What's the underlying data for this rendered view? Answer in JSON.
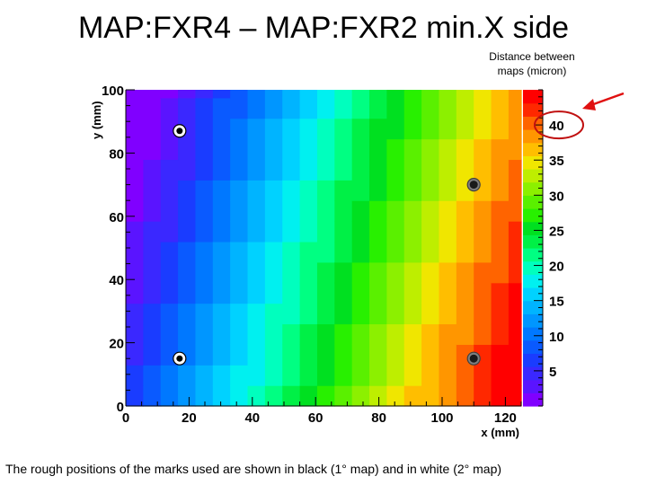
{
  "slide": {
    "title": "MAP:FXR4 – MAP:FXR2 min.X side",
    "caption": "The rough positions of the marks used are shown in black (1° map) and in white (2° map)"
  },
  "colors": {
    "palette": [
      "#8000ff",
      "#5a14ff",
      "#3a28ff",
      "#1a3cff",
      "#0a5aff",
      "#0078ff",
      "#0096ff",
      "#00b4ff",
      "#00d2ff",
      "#00f0f0",
      "#00ffbe",
      "#00ff82",
      "#00f046",
      "#00e020",
      "#28f000",
      "#5af000",
      "#8cf000",
      "#beee00",
      "#f0e600",
      "#ffbe00",
      "#ff9600",
      "#ff6400",
      "#ff2800",
      "#ff0000"
    ],
    "white_mark": "#ffffff",
    "black_mark": "#1a1a1a",
    "arrow": "#e01010",
    "highlight_ellipse": "#c01010"
  },
  "chart_data": {
    "type": "heatmap",
    "title": "Distance between maps (micron)",
    "colorbar_title_lines": [
      "Distance between",
      "maps (micron)"
    ],
    "xlabel": "x (mm)",
    "ylabel": "y (mm)",
    "xlim": [
      0,
      125
    ],
    "ylim": [
      0,
      100
    ],
    "zlim": [
      0,
      45
    ],
    "x_ticks": [
      0,
      20,
      40,
      60,
      80,
      100,
      120
    ],
    "y_ticks": [
      0,
      20,
      40,
      60,
      80,
      100
    ],
    "z_ticks": [
      5,
      10,
      15,
      20,
      25,
      30,
      35,
      40
    ],
    "z_model": {
      "description": "distance increases roughly linearly with x, columns skewed toward larger x at high y",
      "z_at_x0_y0": 6,
      "dz_per_mm_x": 0.33,
      "dz_per_mm_y": -0.09,
      "x_bin_mm": 5.5,
      "y_bin_mm": 6.5
    },
    "marks": [
      {
        "x": 17,
        "y": 87,
        "type": "white",
        "label": "2° map"
      },
      {
        "x": 17,
        "y": 15,
        "type": "white",
        "label": "2° map"
      },
      {
        "x": 110,
        "y": 70,
        "type": "black",
        "label": "1° map"
      },
      {
        "x": 110,
        "y": 15,
        "type": "black",
        "label": "1° map"
      }
    ],
    "highlighted_tick": 40
  }
}
